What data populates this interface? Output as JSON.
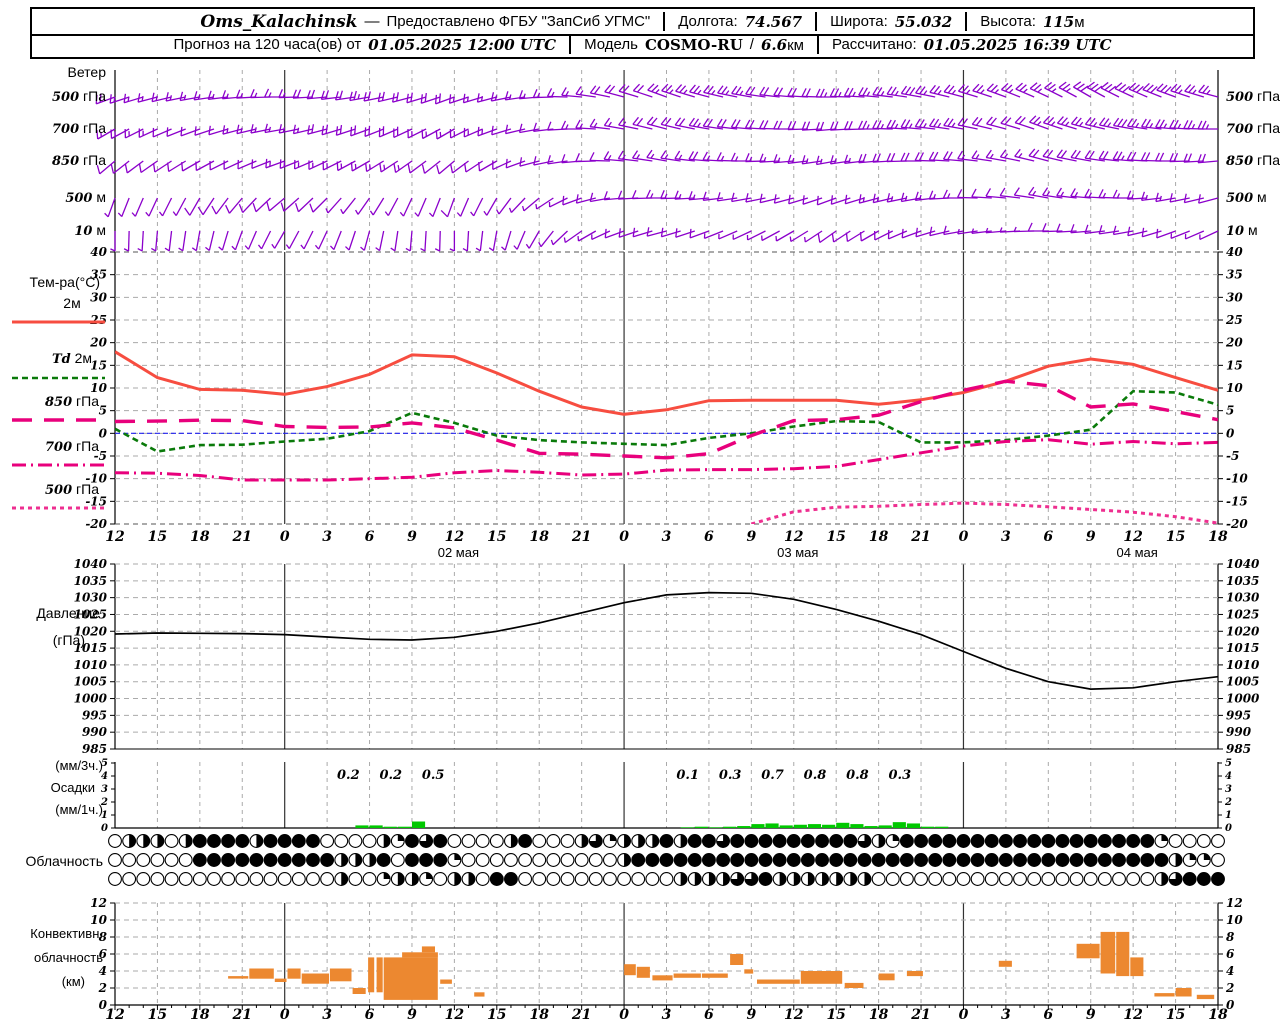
{
  "header": {
    "station": "Oms_Kalachinsk",
    "dash": "—",
    "provided": "Предоставлено ФГБУ \"ЗапСиб УГМС\"",
    "lon_label": "Долгота:",
    "lon_value": "74.567",
    "lat_label": "Широта:",
    "lat_value": "55.032",
    "alt_label": "Высота:",
    "alt_value": "115",
    "alt_unit": "м",
    "forecast_label": "Прогноз на 120 часа(ов) от",
    "forecast_time": "01.05.2025 12:00 UTC",
    "model_label": "Модель",
    "model_name": "COSMO-RU",
    "model_sep": "/",
    "model_res": "6.6",
    "model_res_unit": "км",
    "calc_label": "Рассчитано:",
    "calc_time": "01.05.2025 16:39 UTC"
  },
  "colors": {
    "barb": "#8b00cb",
    "t2m": "#f74d40",
    "td2m": "#0a7a0a",
    "t850": "#e8007c",
    "t700": "#e8007c",
    "t500": "#ee2f90",
    "pressure": "#000000",
    "precip": "#00c800",
    "convective": "#ec8830",
    "grid": "#aaaaaa",
    "dayline": "#333333",
    "zero_line": "#2222ee"
  },
  "x_axis": {
    "hours": [
      0,
      3,
      6,
      9,
      12,
      15,
      18,
      21,
      24,
      27,
      30,
      33,
      36,
      39,
      42,
      45,
      48,
      51,
      54,
      57,
      60,
      63,
      66,
      69,
      72,
      75,
      78
    ],
    "hour_labels": [
      "12",
      "15",
      "18",
      "21",
      "0",
      "3",
      "6",
      "9",
      "12",
      "15",
      "18",
      "21",
      "0",
      "3",
      "6",
      "9",
      "12",
      "15",
      "18",
      "21",
      "0",
      "3",
      "6",
      "9",
      "12",
      "15",
      "18"
    ],
    "date_labels": [
      {
        "hour": 24,
        "label": "02 мая"
      },
      {
        "hour": 48,
        "label": "03 мая"
      },
      {
        "hour": 72,
        "label": "04 мая"
      }
    ],
    "day_boundary_hours": [
      12,
      36,
      60
    ]
  },
  "panels": {
    "wind": {
      "title": "Ветер",
      "levels": [
        {
          "num": "500",
          "unit": " гПа"
        },
        {
          "num": "700",
          "unit": " гПа"
        },
        {
          "num": "850",
          "unit": " гПа"
        },
        {
          "num": "500",
          "unit": " м"
        },
        {
          "num": "10",
          "unit": " м"
        }
      ]
    },
    "temp": {
      "title": "Тем-ра(°C)",
      "ticks": [
        40,
        35,
        30,
        25,
        20,
        15,
        10,
        5,
        0,
        -5,
        -10,
        -15,
        -20
      ],
      "legend": [
        {
          "num": "",
          "unit": "2м",
          "style": "t2m"
        },
        {
          "num": "Td",
          "unit": " 2м",
          "style": "td2m"
        },
        {
          "num": "850",
          "unit": " гПа",
          "style": "t850"
        },
        {
          "num": "700",
          "unit": " гПа",
          "style": "t700"
        },
        {
          "num": "500",
          "unit": " гПа",
          "style": "t500"
        }
      ]
    },
    "pressure": {
      "title_line1": "Давление",
      "title_line2": "(гПа)",
      "ticks": [
        1040,
        1035,
        1030,
        1025,
        1020,
        1015,
        1010,
        1005,
        1000,
        995,
        990,
        985
      ]
    },
    "precip": {
      "label_top": "(мм/3ч.)",
      "label_mid": "Осадки",
      "label_bot": "(мм/1ч.)",
      "ticks": [
        5,
        4,
        3,
        2,
        1,
        0
      ]
    },
    "cloud": {
      "title": "Облачность"
    },
    "conv": {
      "title_line1": "Конвективн.",
      "title_line2": "облачность",
      "title_line3": "(км)",
      "ticks": [
        12,
        10,
        8,
        6,
        4,
        2,
        0
      ]
    }
  },
  "chart_data": [
    {
      "id": "wind_barbs",
      "type": "wind-barbs",
      "note": "meteogram wind barbs, hourly, 5 levels, values at 3-h keyframes",
      "levels": [
        {
          "label": "500 гПа",
          "dir": [
            250,
            255,
            260,
            265,
            270,
            265,
            260,
            255,
            250,
            255,
            265,
            275,
            285,
            290,
            285,
            280,
            275,
            270,
            275,
            280,
            285,
            290,
            295,
            300,
            295,
            290,
            285
          ],
          "spd": [
            20,
            18,
            15,
            15,
            18,
            22,
            25,
            22,
            20,
            18,
            15,
            18,
            22,
            25,
            28,
            25,
            22,
            25,
            28,
            30,
            28,
            25,
            28,
            30,
            32,
            30,
            28
          ]
        },
        {
          "label": "700 гПа",
          "dir": [
            240,
            245,
            250,
            255,
            260,
            255,
            250,
            245,
            240,
            250,
            260,
            270,
            280,
            285,
            280,
            275,
            270,
            265,
            270,
            275,
            280,
            285,
            290,
            285,
            280,
            275,
            270
          ],
          "spd": [
            15,
            15,
            12,
            15,
            18,
            20,
            22,
            20,
            18,
            15,
            12,
            15,
            18,
            22,
            25,
            22,
            20,
            22,
            25,
            28,
            25,
            22,
            25,
            28,
            30,
            28,
            25
          ]
        },
        {
          "label": "850 гПа",
          "dir": [
            230,
            235,
            240,
            245,
            250,
            245,
            240,
            235,
            230,
            240,
            255,
            265,
            275,
            280,
            275,
            270,
            265,
            260,
            265,
            270,
            275,
            280,
            285,
            280,
            275,
            270,
            265
          ],
          "spd": [
            12,
            12,
            10,
            12,
            15,
            18,
            18,
            15,
            12,
            10,
            10,
            12,
            15,
            18,
            20,
            18,
            15,
            18,
            20,
            22,
            20,
            18,
            20,
            22,
            25,
            22,
            20
          ]
        },
        {
          "label": "500 м",
          "dir": [
            200,
            205,
            210,
            220,
            230,
            225,
            215,
            205,
            200,
            210,
            230,
            250,
            265,
            270,
            265,
            260,
            255,
            250,
            255,
            260,
            270,
            275,
            280,
            275,
            270,
            260,
            255
          ],
          "spd": [
            8,
            8,
            10,
            12,
            12,
            10,
            8,
            8,
            10,
            8,
            8,
            10,
            12,
            15,
            15,
            12,
            10,
            12,
            15,
            18,
            15,
            12,
            15,
            18,
            18,
            15,
            12
          ]
        },
        {
          "label": "10 м",
          "dir": [
            180,
            185,
            190,
            200,
            210,
            205,
            195,
            185,
            180,
            190,
            210,
            235,
            250,
            255,
            250,
            245,
            240,
            235,
            240,
            250,
            260,
            265,
            270,
            265,
            260,
            250,
            245
          ],
          "spd": [
            5,
            5,
            8,
            8,
            8,
            5,
            5,
            5,
            8,
            5,
            5,
            8,
            10,
            12,
            10,
            8,
            8,
            10,
            12,
            12,
            10,
            8,
            10,
            12,
            12,
            10,
            8
          ]
        }
      ]
    },
    {
      "id": "temperature",
      "type": "line",
      "title": "Тем-ра(°C)",
      "ylim": [
        -20,
        40
      ],
      "grid": true,
      "series": [
        {
          "name": "2м",
          "color": "#f74d40",
          "dash": "",
          "width": 3,
          "values": [
            18,
            12.3,
            9.7,
            9.5,
            8.6,
            10.3,
            13,
            17.3,
            16.9,
            13.3,
            9.3,
            5.8,
            4.2,
            5.2,
            7.2,
            7.3,
            7.3,
            7.3,
            6.4,
            7.4,
            9,
            11.5,
            14.8,
            16.4,
            15.2,
            12.3,
            9.5
          ]
        },
        {
          "name": "Td 2м",
          "color": "#0a7a0a",
          "dash": "6,4",
          "width": 2.6,
          "values": [
            1,
            -4,
            -2.6,
            -2.5,
            -1.8,
            -1.2,
            0.5,
            4.5,
            2.3,
            -0.5,
            -1.5,
            -2,
            -2.3,
            -2.6,
            -1,
            0,
            1.5,
            2.7,
            2.5,
            -2,
            -2,
            -1.5,
            -0.5,
            0.8,
            9.3,
            9,
            6.3
          ]
        },
        {
          "name": "850 гПа",
          "color": "#e8007c",
          "dash": "20,12",
          "width": 3.4,
          "values": [
            2.6,
            2.7,
            2.9,
            2.8,
            1.5,
            1.3,
            1.4,
            2.3,
            1.2,
            -1.5,
            -4.4,
            -4.6,
            -5,
            -5.4,
            -4.5,
            -0.5,
            2.8,
            3,
            4,
            7,
            9.5,
            11.5,
            10.5,
            5.8,
            6.5,
            4.8,
            3
          ]
        },
        {
          "name": "700 гПа",
          "color": "#e8007c",
          "dash": "14,5,2,5",
          "width": 3,
          "values": [
            -8.7,
            -8.8,
            -9.3,
            -10.3,
            -10.3,
            -10.3,
            -10,
            -9.7,
            -8.7,
            -8.2,
            -8.6,
            -9.2,
            -9,
            -8.1,
            -8,
            -8,
            -7.8,
            -7.3,
            -5.8,
            -4.3,
            -2.8,
            -1.8,
            -1.4,
            -2.4,
            -1.8,
            -2.3,
            -2
          ]
        },
        {
          "name": "500 гПа",
          "color": "#ee2f90",
          "dash": "4,4",
          "width": 3,
          "values": [
            null,
            null,
            null,
            null,
            null,
            null,
            null,
            null,
            null,
            null,
            null,
            null,
            null,
            null,
            null,
            -20,
            -17.3,
            -16.3,
            -16.1,
            -15.7,
            -15.4,
            -15.7,
            -16.2,
            -16.8,
            -17.4,
            -18.4,
            -19.8
          ]
        }
      ],
      "zero_line": 0
    },
    {
      "id": "pressure",
      "type": "line",
      "title": "Давление (гПа)",
      "ylim": [
        985,
        1040
      ],
      "values": [
        1019.2,
        1019.5,
        1019.4,
        1019.3,
        1019,
        1018.3,
        1017.6,
        1017.4,
        1018.2,
        1020,
        1022.5,
        1025.5,
        1028.5,
        1030.8,
        1031.5,
        1031.3,
        1029.5,
        1026.5,
        1023,
        1019,
        1014,
        1009,
        1005,
        1002.8,
        1003.2,
        1005,
        1006.5
      ]
    },
    {
      "id": "precip",
      "type": "bar",
      "title": "Осадки (мм/1ч., мм/3ч.)",
      "ylim": [
        0,
        5
      ],
      "bars_1h": [
        [
          17,
          0.2
        ],
        [
          18,
          0.2
        ],
        [
          19,
          0.1
        ],
        [
          20,
          0.1
        ],
        [
          21,
          0.5
        ],
        [
          40,
          0.05
        ],
        [
          41,
          0.1
        ],
        [
          42,
          0.05
        ],
        [
          43,
          0.1
        ],
        [
          44,
          0.15
        ],
        [
          45,
          0.3
        ],
        [
          46,
          0.35
        ],
        [
          47,
          0.2
        ],
        [
          48,
          0.25
        ],
        [
          49,
          0.3
        ],
        [
          50,
          0.25
        ],
        [
          51,
          0.4
        ],
        [
          52,
          0.3
        ],
        [
          53,
          0.15
        ],
        [
          54,
          0.2
        ],
        [
          55,
          0.45
        ],
        [
          56,
          0.35
        ],
        [
          57,
          0.1
        ],
        [
          58,
          0.1
        ]
      ],
      "labels_3h": [
        [
          16.5,
          "0.2"
        ],
        [
          19.5,
          "0.2"
        ],
        [
          22.5,
          "0.5"
        ],
        [
          40.5,
          "0.1"
        ],
        [
          43.5,
          "0.3"
        ],
        [
          46.5,
          "0.7"
        ],
        [
          49.5,
          "0.8"
        ],
        [
          52.5,
          "0.8"
        ],
        [
          55.5,
          "0.3"
        ]
      ]
    },
    {
      "id": "cloud_cover",
      "type": "heatmap",
      "title": "Облачность",
      "note": "hourly cloud circles, fill in quarters 0-4",
      "rows": [
        {
          "quarters": "022202444424444000021434000024000231222424434444444443214444444444444444441000000"
        },
        {
          "quarters": "000000444444444422240444100000000000244444444444444444444444444444444444444211000"
        },
        {
          "quarters": "000000000000000020012210220440000000000022223342222222000000000000000000002344444"
        }
      ]
    },
    {
      "id": "convective_cloud",
      "type": "floating-bar",
      "title": "Конвективн. облачность (км)",
      "ylim": [
        0,
        12
      ],
      "segments": [
        [
          8,
          9.5,
          3.1,
          3.4
        ],
        [
          9.5,
          11.3,
          3.1,
          4.3
        ],
        [
          11.3,
          12.2,
          2.7,
          3.1
        ],
        [
          12.2,
          13.2,
          3.1,
          4.3
        ],
        [
          13.2,
          15.2,
          2.5,
          3.7
        ],
        [
          15.2,
          16.8,
          2.8,
          4.3
        ],
        [
          16.8,
          17.8,
          1.3,
          2.0
        ],
        [
          17.9,
          18.4,
          1.5,
          5.6
        ],
        [
          18.5,
          19.0,
          1.5,
          5.6
        ],
        [
          19.0,
          22.9,
          0.6,
          5.6
        ],
        [
          20.3,
          22.9,
          5.6,
          6.2
        ],
        [
          21.7,
          22.7,
          6.2,
          6.9
        ],
        [
          23.0,
          23.9,
          2.5,
          3.0
        ],
        [
          25.4,
          26.2,
          1.0,
          1.5
        ],
        [
          36.0,
          36.9,
          3.5,
          4.8
        ],
        [
          36.9,
          37.9,
          3.2,
          4.5
        ],
        [
          38.0,
          39.5,
          2.9,
          3.5
        ],
        [
          39.5,
          41.5,
          3.2,
          3.7
        ],
        [
          41.5,
          43.4,
          3.2,
          3.7
        ],
        [
          43.5,
          44.5,
          4.7,
          6.0
        ],
        [
          44.5,
          45.2,
          3.7,
          4.2
        ],
        [
          45.4,
          48.5,
          2.5,
          3.0
        ],
        [
          48.5,
          51.5,
          2.5,
          4.0
        ],
        [
          51.6,
          53.0,
          2.0,
          2.6
        ],
        [
          54.0,
          55.2,
          2.9,
          3.7
        ],
        [
          56.0,
          57.2,
          3.4,
          4.0
        ],
        [
          62.5,
          63.5,
          4.5,
          5.2
        ],
        [
          68.0,
          69.7,
          5.5,
          7.2
        ],
        [
          69.7,
          70.8,
          3.7,
          8.6
        ],
        [
          70.8,
          71.8,
          3.4,
          8.6
        ],
        [
          71.8,
          72.8,
          3.4,
          5.6
        ],
        [
          73.5,
          75.0,
          1.0,
          1.4
        ],
        [
          75.0,
          76.2,
          1.0,
          2.0
        ],
        [
          76.5,
          77.8,
          0.7,
          1.2
        ]
      ]
    }
  ]
}
